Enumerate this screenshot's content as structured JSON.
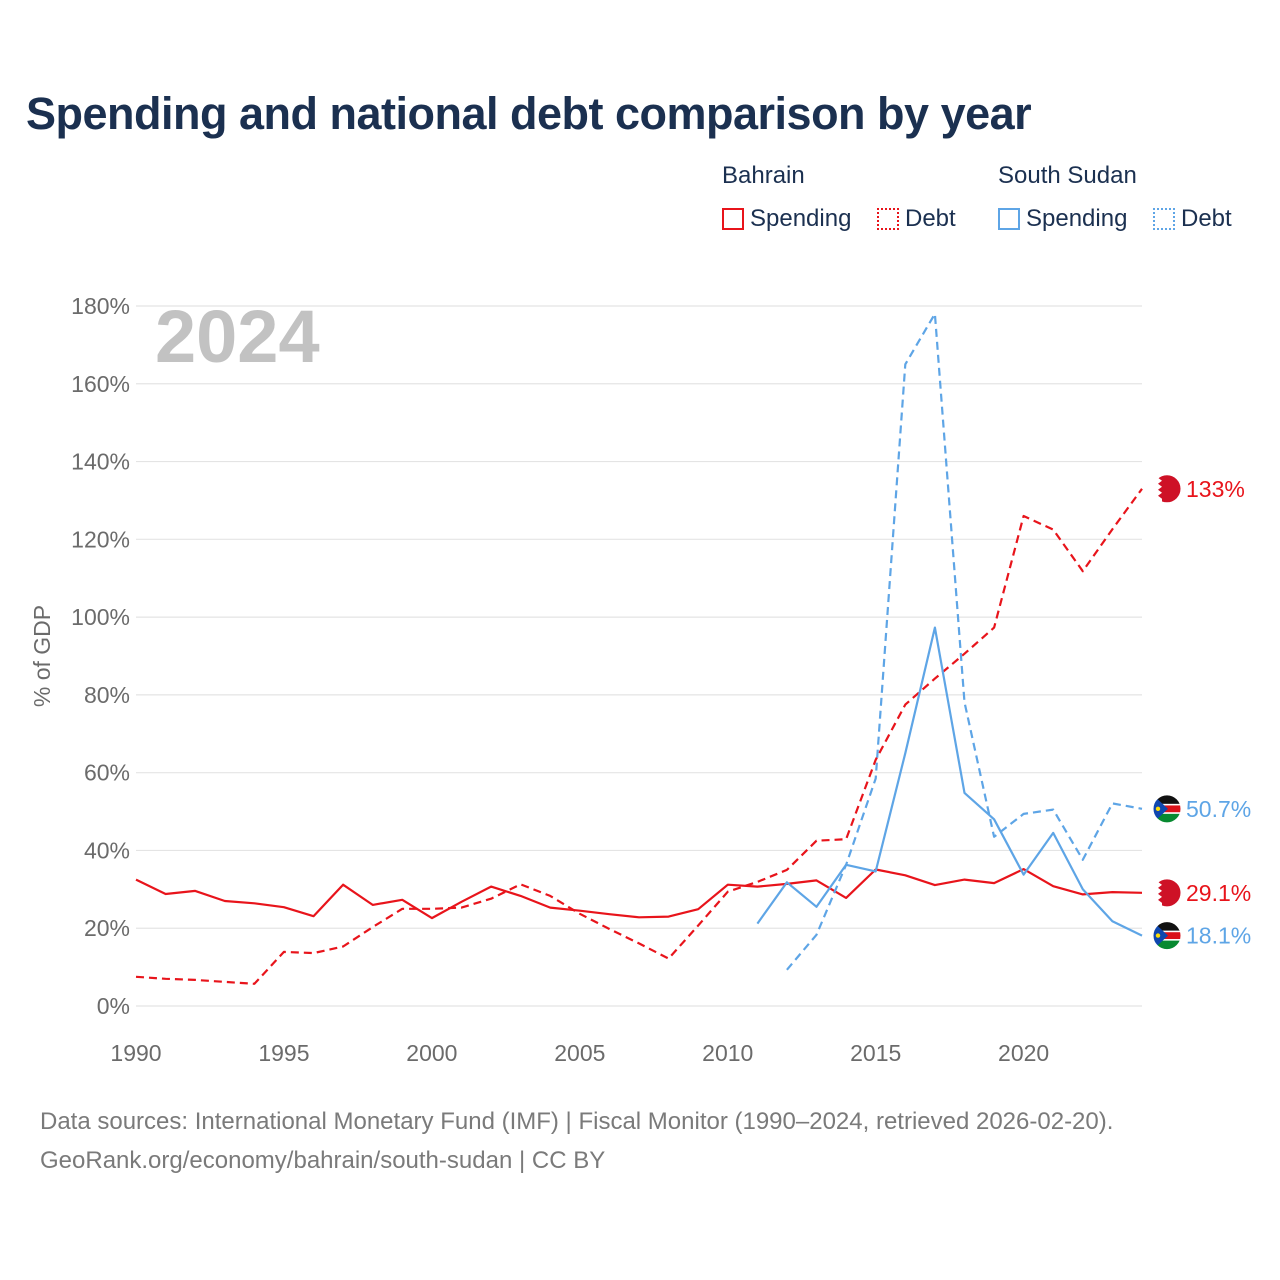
{
  "title": "Spending and national debt comparison by year",
  "legend": {
    "groups": [
      {
        "country": "Bahrain",
        "color": "#e8141b",
        "items": [
          {
            "label": "Spending",
            "style": "solid"
          },
          {
            "label": "Debt",
            "style": "dotted"
          }
        ]
      },
      {
        "country": "South Sudan",
        "color": "#5ea5e6",
        "items": [
          {
            "label": "Spending",
            "style": "solid"
          },
          {
            "label": "Debt",
            "style": "dotted"
          }
        ]
      }
    ]
  },
  "chart_data": {
    "type": "line",
    "title": "Spending and national debt comparison by year",
    "watermark_year": "2024",
    "ylabel": "% of GDP",
    "xlabel": "",
    "xlim": [
      1990,
      2024
    ],
    "ylim": [
      0,
      180
    ],
    "x_ticks": [
      1990,
      1995,
      2000,
      2005,
      2010,
      2015,
      2020
    ],
    "y_ticks": [
      0,
      20,
      40,
      60,
      80,
      100,
      120,
      140,
      160,
      180
    ],
    "y_tick_labels": [
      "0%",
      "20%",
      "40%",
      "60%",
      "80%",
      "100%",
      "120%",
      "140%",
      "160%",
      "180%"
    ],
    "grid": true,
    "series": [
      {
        "name": "Bahrain Spending",
        "country": "Bahrain",
        "metric": "Spending",
        "dash": "solid",
        "color": "#e8141b",
        "x": [
          1990,
          1991,
          1992,
          1993,
          1994,
          1995,
          1996,
          1997,
          1998,
          1999,
          2000,
          2001,
          2002,
          2003,
          2004,
          2005,
          2006,
          2007,
          2008,
          2009,
          2010,
          2011,
          2012,
          2013,
          2014,
          2015,
          2016,
          2017,
          2018,
          2019,
          2020,
          2021,
          2022,
          2023,
          2024
        ],
        "y": [
          32.5,
          28.8,
          29.6,
          27,
          26.4,
          25.4,
          23.1,
          31.2,
          26,
          27.3,
          22.6,
          26.8,
          30.7,
          28.3,
          25.3,
          24.5,
          23.6,
          22.8,
          23,
          24.9,
          31.2,
          30.7,
          31.4,
          32.3,
          27.8,
          35.1,
          33.6,
          31.1,
          32.5,
          31.6,
          35.2,
          30.8,
          28.7,
          29.3,
          29.1
        ],
        "end_label": "29.1%"
      },
      {
        "name": "Bahrain Debt",
        "country": "Bahrain",
        "metric": "Debt",
        "dash": "dashed",
        "color": "#e8141b",
        "x": [
          1990,
          1991,
          1992,
          1993,
          1994,
          1995,
          1996,
          1997,
          1998,
          1999,
          2000,
          2001,
          2002,
          2003,
          2004,
          2005,
          2006,
          2007,
          2008,
          2009,
          2010,
          2011,
          2012,
          2013,
          2014,
          2015,
          2016,
          2017,
          2018,
          2019,
          2020,
          2021,
          2022,
          2023,
          2024
        ],
        "y": [
          7.5,
          7,
          6.7,
          6.2,
          5.7,
          13.9,
          13.6,
          15.3,
          20.3,
          25,
          25,
          25.3,
          27.6,
          31.3,
          28.3,
          23.7,
          19.8,
          16.1,
          12.2,
          20.7,
          29.4,
          31.9,
          35,
          42.5,
          42.9,
          63.3,
          77.5,
          84.2,
          90.6,
          97.3,
          126,
          122.5,
          111.8,
          122.6,
          133
        ],
        "end_label": "133%"
      },
      {
        "name": "South Sudan Spending",
        "country": "South Sudan",
        "metric": "Spending",
        "dash": "solid",
        "color": "#5ea5e6",
        "x": [
          2011,
          2012,
          2013,
          2014,
          2015,
          2016,
          2017,
          2018,
          2019,
          2020,
          2021,
          2022,
          2023,
          2024
        ],
        "y": [
          21.2,
          31.8,
          25.5,
          36.3,
          34.6,
          65,
          97.3,
          54.8,
          48,
          33.8,
          44.5,
          30,
          21.8,
          18.1
        ],
        "end_label": "18.1%"
      },
      {
        "name": "South Sudan Debt",
        "country": "South Sudan",
        "metric": "Debt",
        "dash": "dashed",
        "color": "#5ea5e6",
        "x": [
          2012,
          2013,
          2014,
          2015,
          2016,
          2017,
          2018,
          2019,
          2020,
          2021,
          2022,
          2023,
          2024
        ],
        "y": [
          9.3,
          18.3,
          36.3,
          58.5,
          165,
          178,
          78.1,
          43.5,
          49.4,
          50.5,
          37.6,
          52.1,
          50.7
        ],
        "end_label": "50.7%"
      }
    ]
  },
  "footer": {
    "sources": "Data sources: International Monetary Fund (IMF) | Fiscal Monitor (1990–2024, retrieved 2026-02-20).",
    "credit": "GeoRank.org/economy/bahrain/south-sudan | CC BY"
  }
}
